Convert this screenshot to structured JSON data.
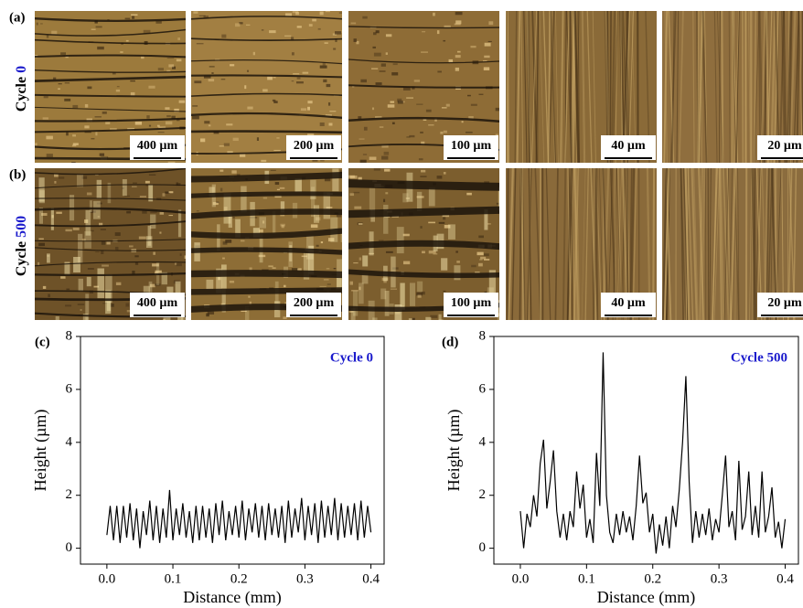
{
  "micrographs": {
    "rows": [
      {
        "panel": "(a)",
        "label_word": "Cycle",
        "label_number": "0",
        "scale_bars": [
          "400 µm",
          "200 µm",
          "100 µm",
          "40 µm",
          "20 µm"
        ]
      },
      {
        "panel": "(b)",
        "label_word": "Cycle",
        "label_number": "500",
        "scale_bars": [
          "400 µm",
          "200 µm",
          "100 µm",
          "40 µm",
          "20 µm"
        ]
      }
    ]
  },
  "chart_data": [
    {
      "type": "line",
      "panel": "(c)",
      "annotation": "Cycle 0",
      "x_label": "Distance (mm)",
      "y_label": "Height (µm)",
      "color": "#000000",
      "xlim": [
        -0.04,
        0.42
      ],
      "ylim": [
        -0.6,
        8
      ],
      "xticks": [
        {
          "value": 0,
          "label": "0.0"
        },
        0.1,
        0.2,
        0.3,
        0.4
      ],
      "yticks": [
        0,
        2,
        4,
        6,
        8
      ],
      "x": [
        0,
        0.005,
        0.01,
        0.015,
        0.02,
        0.025,
        0.03,
        0.035,
        0.04,
        0.045,
        0.05,
        0.055,
        0.06,
        0.065,
        0.07,
        0.075,
        0.08,
        0.085,
        0.09,
        0.095,
        0.1,
        0.105,
        0.11,
        0.115,
        0.12,
        0.125,
        0.13,
        0.135,
        0.14,
        0.145,
        0.15,
        0.155,
        0.16,
        0.165,
        0.17,
        0.175,
        0.18,
        0.185,
        0.19,
        0.195,
        0.2,
        0.205,
        0.21,
        0.215,
        0.22,
        0.225,
        0.23,
        0.235,
        0.24,
        0.245,
        0.25,
        0.255,
        0.26,
        0.265,
        0.27,
        0.275,
        0.28,
        0.285,
        0.29,
        0.295,
        0.3,
        0.305,
        0.31,
        0.315,
        0.32,
        0.325,
        0.33,
        0.335,
        0.34,
        0.345,
        0.35,
        0.355,
        0.36,
        0.365,
        0.37,
        0.375,
        0.38,
        0.385,
        0.39,
        0.395,
        0.4
      ],
      "values": [
        0.5,
        1.6,
        0.3,
        1.6,
        0.2,
        1.6,
        0.4,
        1.7,
        0.3,
        1.5,
        0.0,
        1.4,
        0.5,
        1.8,
        0.3,
        1.6,
        0.2,
        1.5,
        0.4,
        2.2,
        0.3,
        1.5,
        0.5,
        1.7,
        0.4,
        1.4,
        0.2,
        1.6,
        0.3,
        1.6,
        0.4,
        1.5,
        0.2,
        1.7,
        0.5,
        1.8,
        0.3,
        1.4,
        0.5,
        1.6,
        0.4,
        1.8,
        0.3,
        1.5,
        0.6,
        1.7,
        0.4,
        1.6,
        0.3,
        1.7,
        0.5,
        1.5,
        0.4,
        1.6,
        0.2,
        1.8,
        0.4,
        1.5,
        0.6,
        1.9,
        0.3,
        1.6,
        0.5,
        1.7,
        0.2,
        1.8,
        0.4,
        1.6,
        0.5,
        1.9,
        0.3,
        1.7,
        0.4,
        1.6,
        0.5,
        1.7,
        0.3,
        1.8,
        0.4,
        1.6,
        0.6
      ]
    },
    {
      "type": "line",
      "panel": "(d)",
      "annotation": "Cycle 500",
      "x_label": "Distance (mm)",
      "y_label": "Height (µm)",
      "color": "#000000",
      "xlim": [
        -0.04,
        0.42
      ],
      "ylim": [
        -0.6,
        8
      ],
      "xticks": [
        {
          "value": 0,
          "label": "0.0"
        },
        0.1,
        0.2,
        0.3,
        0.4
      ],
      "yticks": [
        0,
        2,
        4,
        6,
        8
      ],
      "x": [
        0,
        0.005,
        0.01,
        0.015,
        0.02,
        0.025,
        0.03,
        0.035,
        0.04,
        0.045,
        0.05,
        0.055,
        0.06,
        0.065,
        0.07,
        0.075,
        0.08,
        0.085,
        0.09,
        0.095,
        0.1,
        0.105,
        0.11,
        0.115,
        0.12,
        0.125,
        0.13,
        0.135,
        0.14,
        0.145,
        0.15,
        0.155,
        0.16,
        0.165,
        0.17,
        0.175,
        0.18,
        0.185,
        0.19,
        0.195,
        0.2,
        0.205,
        0.21,
        0.215,
        0.22,
        0.225,
        0.23,
        0.235,
        0.24,
        0.245,
        0.25,
        0.255,
        0.26,
        0.265,
        0.27,
        0.275,
        0.28,
        0.285,
        0.29,
        0.295,
        0.3,
        0.305,
        0.31,
        0.315,
        0.32,
        0.325,
        0.33,
        0.335,
        0.34,
        0.345,
        0.35,
        0.355,
        0.36,
        0.365,
        0.37,
        0.375,
        0.38,
        0.385,
        0.39,
        0.395,
        0.4
      ],
      "values": [
        1.4,
        0.0,
        1.3,
        0.8,
        2.0,
        1.2,
        3.2,
        4.1,
        1.5,
        2.5,
        3.7,
        1.4,
        0.4,
        1.3,
        0.3,
        1.4,
        0.8,
        2.9,
        1.5,
        2.4,
        0.4,
        1.1,
        0.2,
        3.6,
        1.6,
        7.4,
        2.0,
        0.6,
        0.2,
        1.3,
        0.5,
        1.4,
        0.6,
        1.2,
        0.3,
        1.6,
        3.5,
        1.7,
        2.1,
        0.6,
        1.3,
        -0.2,
        0.9,
        0.1,
        1.2,
        0.0,
        1.6,
        0.8,
        2.2,
        4.0,
        6.5,
        2.5,
        0.2,
        1.4,
        0.4,
        1.3,
        0.5,
        1.5,
        0.3,
        1.1,
        0.6,
        2.0,
        3.5,
        0.8,
        1.4,
        0.3,
        3.3,
        0.7,
        1.2,
        2.9,
        0.5,
        1.6,
        0.4,
        2.9,
        0.6,
        1.2,
        2.3,
        0.4,
        1.0,
        0.0,
        1.1
      ]
    }
  ]
}
